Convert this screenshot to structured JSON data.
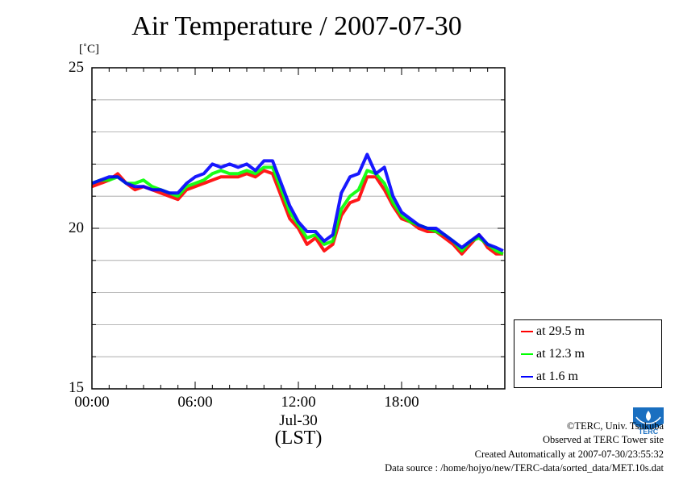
{
  "chart_data": {
    "type": "line",
    "title": "Air Temperature / 2007-07-30",
    "unit_label": "[˚C]",
    "xlabel": "(LST)",
    "x_date_label": "Jul-30",
    "xlim": [
      0,
      24
    ],
    "ylim": [
      15,
      25
    ],
    "y_ticks": [
      "25",
      "20",
      "15"
    ],
    "x_ticks": [
      "00:00",
      "06:00",
      "12:00",
      "18:00"
    ],
    "grid": true,
    "legend_position": "bottom-right, outside plot",
    "series": [
      {
        "name": "at 29.5 m",
        "color": "#ff0000",
        "x": [
          0,
          0.5,
          1,
          1.5,
          2,
          2.5,
          3,
          3.5,
          4,
          4.5,
          5,
          5.5,
          6,
          6.5,
          7,
          7.5,
          8,
          8.5,
          9,
          9.5,
          10,
          10.5,
          11,
          11.5,
          12,
          12.5,
          13,
          13.5,
          14,
          14.5,
          15,
          15.5,
          16,
          16.5,
          17,
          17.5,
          18,
          18.5,
          19,
          19.5,
          20,
          20.5,
          21,
          21.5,
          22,
          22.5,
          23,
          23.5,
          23.9
        ],
        "values": [
          21.3,
          21.4,
          21.5,
          21.7,
          21.4,
          21.2,
          21.3,
          21.2,
          21.1,
          21.0,
          20.9,
          21.2,
          21.3,
          21.4,
          21.5,
          21.6,
          21.6,
          21.6,
          21.7,
          21.6,
          21.8,
          21.7,
          21.0,
          20.3,
          20.0,
          19.5,
          19.7,
          19.3,
          19.5,
          20.4,
          20.8,
          20.9,
          21.6,
          21.6,
          21.2,
          20.7,
          20.3,
          20.2,
          20.0,
          19.9,
          19.9,
          19.7,
          19.5,
          19.2,
          19.5,
          19.8,
          19.4,
          19.2,
          19.2
        ]
      },
      {
        "name": "at 12.3 m",
        "color": "#00ff00",
        "x": [
          0,
          0.5,
          1,
          1.5,
          2,
          2.5,
          3,
          3.5,
          4,
          4.5,
          5,
          5.5,
          6,
          6.5,
          7,
          7.5,
          8,
          8.5,
          9,
          9.5,
          10,
          10.5,
          11,
          11.5,
          12,
          12.5,
          13,
          13.5,
          14,
          14.5,
          15,
          15.5,
          16,
          16.5,
          17,
          17.5,
          18,
          18.5,
          19,
          19.5,
          20,
          20.5,
          21,
          21.5,
          22,
          22.5,
          23,
          23.5,
          23.9
        ],
        "values": [
          21.4,
          21.5,
          21.5,
          21.6,
          21.4,
          21.4,
          21.5,
          21.3,
          21.2,
          21.1,
          21.0,
          21.3,
          21.4,
          21.5,
          21.7,
          21.8,
          21.7,
          21.7,
          21.8,
          21.7,
          21.9,
          21.9,
          21.2,
          20.5,
          20.1,
          19.7,
          19.8,
          19.5,
          19.6,
          20.6,
          21.0,
          21.2,
          21.8,
          21.7,
          21.4,
          20.8,
          20.4,
          20.2,
          20.1,
          20.0,
          19.9,
          19.8,
          19.6,
          19.3,
          19.6,
          19.7,
          19.5,
          19.3,
          19.2
        ]
      },
      {
        "name": "at 1.6 m",
        "color": "#0000ff",
        "x": [
          0,
          0.5,
          1,
          1.5,
          2,
          2.5,
          3,
          3.5,
          4,
          4.5,
          5,
          5.5,
          6,
          6.5,
          7,
          7.5,
          8,
          8.5,
          9,
          9.5,
          10,
          10.5,
          11,
          11.5,
          12,
          12.5,
          13,
          13.5,
          14,
          14.5,
          15,
          15.5,
          16,
          16.5,
          17,
          17.5,
          18,
          18.5,
          19,
          19.5,
          20,
          20.5,
          21,
          21.5,
          22,
          22.5,
          23,
          23.5,
          23.9
        ],
        "values": [
          21.4,
          21.5,
          21.6,
          21.6,
          21.4,
          21.3,
          21.3,
          21.2,
          21.2,
          21.1,
          21.1,
          21.4,
          21.6,
          21.7,
          22.0,
          21.9,
          22.0,
          21.9,
          22.0,
          21.8,
          22.1,
          22.1,
          21.4,
          20.7,
          20.2,
          19.9,
          19.9,
          19.6,
          19.8,
          21.1,
          21.6,
          21.7,
          22.3,
          21.7,
          21.9,
          21.0,
          20.5,
          20.3,
          20.1,
          20.0,
          20.0,
          19.8,
          19.6,
          19.4,
          19.6,
          19.8,
          19.5,
          19.4,
          19.3
        ]
      }
    ]
  },
  "credits": {
    "line1": "©TERC, Univ. Tsukuba",
    "line2": "Observed at TERC Tower site",
    "line3": "Created Automatically at 2007-07-30/23:55:32",
    "line4": "Data source : /home/hojyo/new/TERC-data/sorted_data/MET.10s.dat"
  },
  "logo": {
    "text": "TERC",
    "color": "#1a6fc0"
  }
}
